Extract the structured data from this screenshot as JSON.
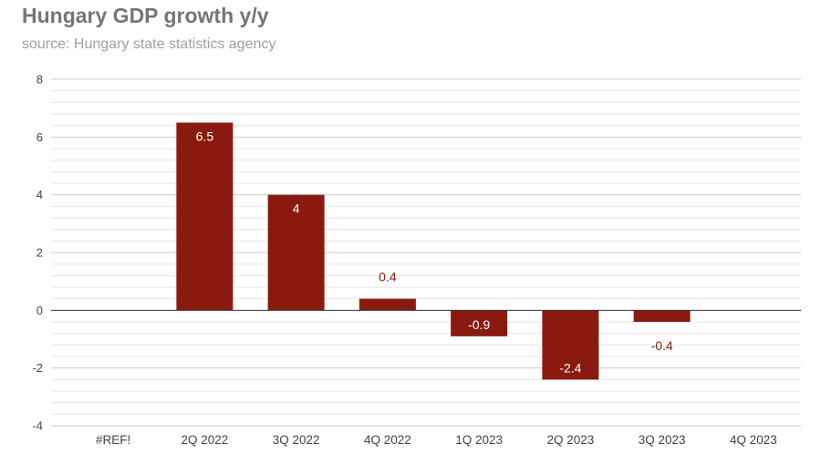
{
  "chart_data": {
    "type": "bar",
    "title": "Hungary GDP growth y/y",
    "subtitle": "source: Hungary state statistics agency",
    "categories": [
      "#REF!",
      "2Q 2022",
      "3Q 2022",
      "4Q 2022",
      "1Q 2023",
      "2Q 2023",
      "3Q 2023",
      "4Q 2023"
    ],
    "values": [
      null,
      6.5,
      4,
      0.4,
      -0.9,
      -2.4,
      -0.4,
      null
    ],
    "data_labels": [
      "",
      "6.5",
      "4",
      "0.4",
      "-0.9",
      "-2.4",
      "-0.4",
      ""
    ],
    "ylim": [
      -4,
      8
    ],
    "yticks": [
      8,
      6,
      4,
      2,
      0,
      -2,
      -4
    ],
    "ytick_labels": [
      "8",
      "6",
      "4",
      "2",
      "0",
      "-2",
      "-4"
    ],
    "xlabel": "",
    "ylabel": "",
    "grid": true,
    "legend": "none",
    "colors": {
      "bar": "#8b1a0e",
      "label_inside": "#ffffff",
      "label_outside": "#8b1a0e",
      "major_grid": "#cccccc",
      "minor_grid": "#e6e6e6",
      "zero_line": "#333333"
    }
  }
}
